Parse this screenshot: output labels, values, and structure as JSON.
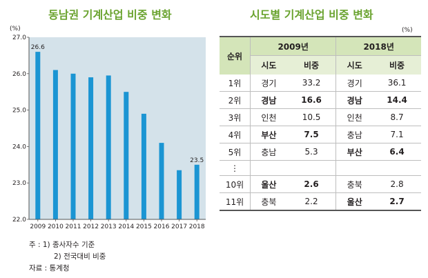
{
  "left_title": "동남권 기계산업 비중 변화",
  "right_title": "시도별 기계산업 비중 변화",
  "chart_data": {
    "type": "bar",
    "title": "동남권 기계산업 비중 변화",
    "unit": "(%)",
    "categories": [
      "2009",
      "2010",
      "2011",
      "2012",
      "2013",
      "2014",
      "2015",
      "2016",
      "2017",
      "2018"
    ],
    "values": [
      26.6,
      26.1,
      26.0,
      25.9,
      25.95,
      25.5,
      24.9,
      24.1,
      23.35,
      23.5
    ],
    "data_labels": {
      "0": "26.6",
      "9": "23.5"
    },
    "ylim": [
      22.0,
      27.0
    ],
    "yticks": [
      "22.0",
      "23.0",
      "24.0",
      "25.0",
      "26.0",
      "27.0"
    ],
    "grid": false,
    "bar_color": "#1b95d3",
    "bg_color": "#d4e2ea"
  },
  "table": {
    "unit": "(%)",
    "rank_header": "순위",
    "groups": [
      "2009년",
      "2018년"
    ],
    "sub_headers": [
      "시도",
      "비중",
      "시도",
      "비중"
    ],
    "rows": [
      {
        "rank": "1위",
        "r2009": "경기",
        "v2009": "33.2",
        "r2018": "경기",
        "v2018": "36.1"
      },
      {
        "rank": "2위",
        "r2009": "경남",
        "v2009": "16.6",
        "r2018": "경남",
        "v2018": "14.4"
      },
      {
        "rank": "3위",
        "r2009": "인천",
        "v2009": "10.5",
        "r2018": "인천",
        "v2018": "8.7"
      },
      {
        "rank": "4위",
        "r2009": "부산",
        "v2009": "7.5",
        "r2018": "충남",
        "v2018": "7.1"
      },
      {
        "rank": "5위",
        "r2009": "충남",
        "v2009": "5.3",
        "r2018": "부산",
        "v2018": "6.4"
      },
      {
        "rank": "⋮",
        "r2009": "",
        "v2009": "",
        "r2018": "",
        "v2018": ""
      },
      {
        "rank": "10위",
        "r2009": "울산",
        "v2009": "2.6",
        "r2018": "충북",
        "v2018": "2.8"
      },
      {
        "rank": "11위",
        "r2009": "충북",
        "v2009": "2.2",
        "r2018": "울산",
        "v2018": "2.7"
      }
    ],
    "bold_2009": [
      1,
      3,
      6
    ],
    "bold_2018": [
      1,
      4,
      7
    ]
  },
  "notes": {
    "note1": "주 : 1) 종사자수 기준",
    "note2": "2) 전국대비 비중",
    "source": "자료 : 통계청"
  }
}
